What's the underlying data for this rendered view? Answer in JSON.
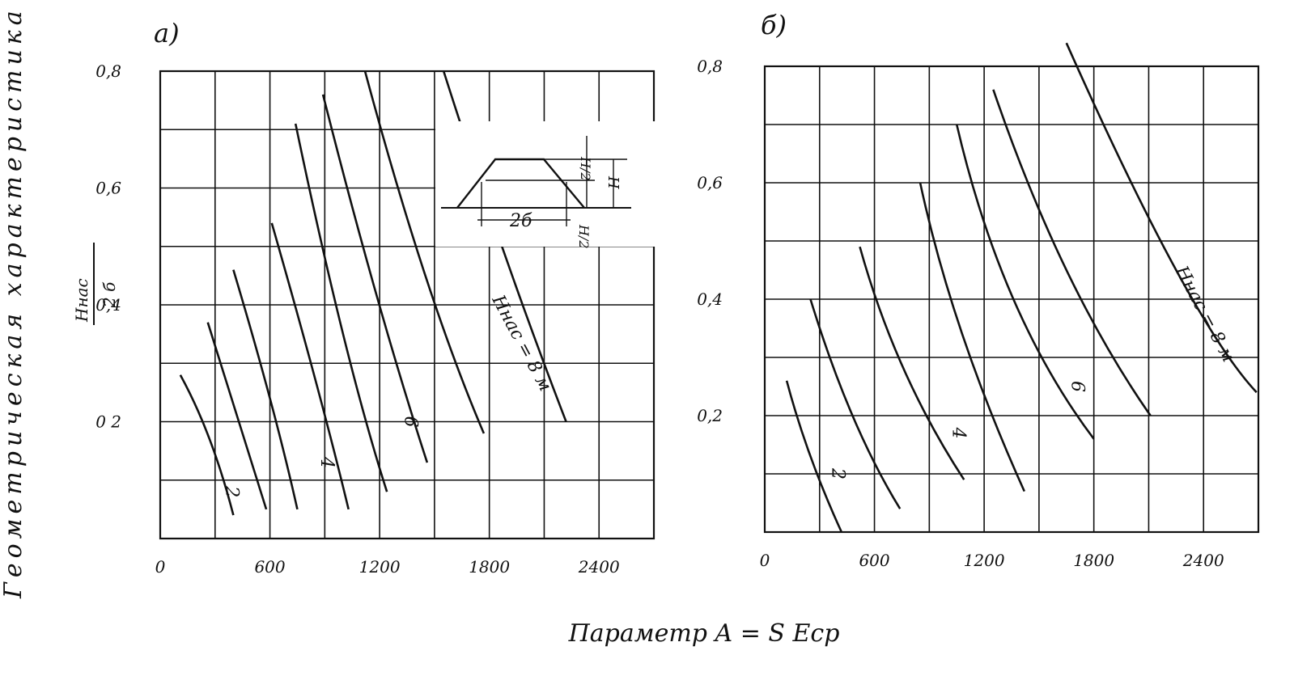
{
  "figure": {
    "xlabel": "Параметр  A = S  Eср",
    "ylabel_left": "Геометрическая    характеристика",
    "ylabel_fraction_num": "Hнас",
    "ylabel_fraction_den": "2 б",
    "inset": {
      "label_width": "2б",
      "label_h_half_top": "H/2",
      "label_h": "H",
      "label_h_half_bottom": "H/2"
    }
  },
  "chart_data": [
    {
      "type": "line",
      "panel_label": "а)",
      "title": "",
      "xlabel": "",
      "ylabel": "",
      "xlim": [
        0,
        2700
      ],
      "ylim": [
        0,
        0.8
      ],
      "x_ticks": [
        0,
        600,
        1200,
        1800,
        2400
      ],
      "x_tick_labels": [
        "0",
        "600",
        "1200",
        "1800",
        "2400"
      ],
      "y_ticks": [
        0.2,
        0.4,
        0.6,
        0.8
      ],
      "y_tick_labels": [
        "0 2",
        "0,4",
        "0,6",
        "0,8"
      ],
      "grid": true,
      "series": [
        {
          "name": "2",
          "label_text": "2",
          "label_at": [
            360,
            0.08
          ],
          "points": [
            [
              110,
              0.28
            ],
            [
              270,
              0.17
            ],
            [
              400,
              0.04
            ]
          ]
        },
        {
          "name": "",
          "points": [
            [
              260,
              0.37
            ],
            [
              450,
              0.18
            ],
            [
              580,
              0.05
            ]
          ]
        },
        {
          "name": "",
          "points": [
            [
              400,
              0.46
            ],
            [
              600,
              0.24
            ],
            [
              750,
              0.05
            ]
          ]
        },
        {
          "name": "4",
          "label_text": "4",
          "label_at": [
            880,
            0.13
          ],
          "points": [
            [
              610,
              0.54
            ],
            [
              850,
              0.27
            ],
            [
              1030,
              0.05
            ]
          ]
        },
        {
          "name": "",
          "points": [
            [
              740,
              0.71
            ],
            [
              1000,
              0.35
            ],
            [
              1240,
              0.08
            ]
          ]
        },
        {
          "name": "6",
          "label_text": "6",
          "label_at": [
            1340,
            0.2
          ],
          "points": [
            [
              890,
              0.76
            ],
            [
              1180,
              0.42
            ],
            [
              1460,
              0.13
            ]
          ]
        },
        {
          "name": "",
          "points": [
            [
              1120,
              0.8
            ],
            [
              1450,
              0.45
            ],
            [
              1770,
              0.18
            ]
          ]
        },
        {
          "name": "Hнас = 8 м",
          "label_text": "Hнас = 8 м",
          "label_at": [
            1950,
            0.33
          ],
          "points": [
            [
              1550,
              0.8
            ],
            [
              1880,
              0.49
            ],
            [
              2220,
              0.2
            ]
          ]
        }
      ]
    },
    {
      "type": "line",
      "panel_label": "б)",
      "title": "",
      "xlabel": "",
      "ylabel": "",
      "xlim": [
        0,
        2700
      ],
      "ylim": [
        0,
        0.8
      ],
      "x_ticks": [
        0,
        600,
        1200,
        1800,
        2400
      ],
      "x_tick_labels": [
        "0",
        "600",
        "1200",
        "1800",
        "2400"
      ],
      "y_ticks": [
        0.2,
        0.4,
        0.6,
        0.8
      ],
      "y_tick_labels": [
        "0,2",
        "0,4",
        "0,6",
        "0,8"
      ],
      "grid": true,
      "series": [
        {
          "name": "2",
          "label_text": "2",
          "label_at": [
            370,
            0.1
          ],
          "points": [
            [
              120,
              0.26
            ],
            [
              250,
              0.13
            ],
            [
              420,
              0.0
            ]
          ]
        },
        {
          "name": "",
          "points": [
            [
              250,
              0.4
            ],
            [
              480,
              0.2
            ],
            [
              740,
              0.04
            ]
          ]
        },
        {
          "name": "",
          "points": [
            [
              520,
              0.49
            ],
            [
              760,
              0.28
            ],
            [
              1090,
              0.09
            ]
          ]
        },
        {
          "name": "4",
          "label_text": "4",
          "label_at": [
            1030,
            0.17
          ],
          "points": [
            [
              850,
              0.6
            ],
            [
              1080,
              0.34
            ],
            [
              1420,
              0.07
            ]
          ]
        },
        {
          "name": "",
          "points": [
            [
              1050,
              0.7
            ],
            [
              1360,
              0.4
            ],
            [
              1800,
              0.16
            ]
          ]
        },
        {
          "name": "6",
          "label_text": "6",
          "label_at": [
            1680,
            0.25
          ],
          "points": [
            [
              1250,
              0.76
            ],
            [
              1650,
              0.45
            ],
            [
              2110,
              0.2
            ]
          ]
        },
        {
          "name": "Hнас = 8 м",
          "label_text": "Hнас = 8 м",
          "label_at": [
            2380,
            0.37
          ],
          "points": [
            [
              1650,
              0.84
            ],
            [
              2250,
              0.45
            ],
            [
              2690,
              0.24
            ]
          ]
        }
      ]
    }
  ]
}
